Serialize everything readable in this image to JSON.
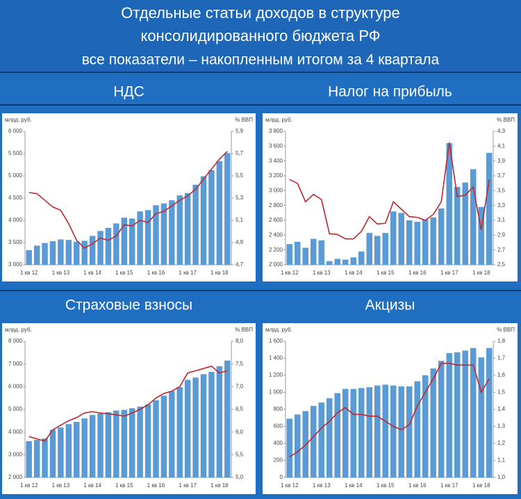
{
  "header": {
    "title_lines": [
      "Отдельные статьи доходов в структуре",
      "консолидированного бюджета РФ",
      "все показатели – накопленным итогом за 4 квартала"
    ]
  },
  "chart_data": [
    {
      "type": "combo",
      "title": "НДС",
      "ylabel": "млрд. руб.",
      "y2label": "% ВВП",
      "categories": [
        "1 кв 12",
        null,
        null,
        null,
        "1 кв 13",
        null,
        null,
        null,
        "1 кв 14",
        null,
        null,
        null,
        "1 кв 15",
        null,
        null,
        null,
        "1 кв 16",
        null,
        null,
        null,
        "1 кв 17",
        null,
        null,
        null,
        "1 кв 18",
        null
      ],
      "ylim": [
        3000,
        6000
      ],
      "yticks": [
        {
          "value": 3000,
          "label": "3 000"
        },
        {
          "value": 3500,
          "label": "3 500"
        },
        {
          "value": 4000,
          "label": "4 000"
        },
        {
          "value": 4500,
          "label": "4 500"
        },
        {
          "value": 5000,
          "label": "5 000"
        },
        {
          "value": 5500,
          "label": "5 500"
        },
        {
          "value": 6000,
          "label": "6 000"
        }
      ],
      "y2lim": [
        4.7,
        5.9
      ],
      "y2ticks": [
        {
          "value": 4.7,
          "label": "4,7"
        },
        {
          "value": 4.9,
          "label": "4,9"
        },
        {
          "value": 5.1,
          "label": "5,1"
        },
        {
          "value": 5.3,
          "label": "5,3"
        },
        {
          "value": 5.5,
          "label": "5,5"
        },
        {
          "value": 5.7,
          "label": "5,7"
        },
        {
          "value": 5.9,
          "label": "5,9"
        }
      ],
      "series": [
        {
          "type": "bar",
          "color": "#5b9bd5",
          "values": [
            3330,
            3430,
            3490,
            3530,
            3570,
            3560,
            3520,
            3540,
            3650,
            3760,
            3830,
            3930,
            4060,
            4040,
            4200,
            4230,
            4340,
            4380,
            4450,
            4560,
            4610,
            4800,
            4990,
            5130,
            5330,
            5510
          ]
        },
        {
          "type": "line",
          "axis": "y2",
          "color": "#c0262d",
          "values": [
            5.35,
            5.34,
            5.28,
            5.22,
            5.19,
            5.07,
            4.92,
            4.85,
            4.89,
            4.94,
            4.92,
            4.96,
            5.06,
            5.05,
            5.1,
            5.08,
            5.16,
            5.18,
            5.23,
            5.28,
            5.32,
            5.38,
            5.47,
            5.56,
            5.65,
            5.72
          ]
        }
      ]
    },
    {
      "type": "combo",
      "title": "Налог на прибыль",
      "ylabel": "млрд. руб.",
      "y2label": "% ВВП",
      "categories": [
        "1 кв 12",
        null,
        null,
        null,
        "1 кв 13",
        null,
        null,
        null,
        "1 кв 14",
        null,
        null,
        null,
        "1 кв 15",
        null,
        null,
        null,
        "1 кв 16",
        null,
        null,
        null,
        "1 кв 17",
        null,
        null,
        null,
        "1 кв 18",
        null
      ],
      "ylim": [
        2000,
        3800
      ],
      "yticks": [
        {
          "value": 2000,
          "label": "2 000"
        },
        {
          "value": 2200,
          "label": "2 200"
        },
        {
          "value": 2400,
          "label": "2 400"
        },
        {
          "value": 2600,
          "label": "2 600"
        },
        {
          "value": 2800,
          "label": "2 800"
        },
        {
          "value": 3000,
          "label": "3 000"
        },
        {
          "value": 3200,
          "label": "3 200"
        },
        {
          "value": 3400,
          "label": "3 400"
        },
        {
          "value": 3600,
          "label": "3 600"
        },
        {
          "value": 3800,
          "label": "3 800"
        }
      ],
      "y2lim": [
        2.5,
        4.3
      ],
      "y2ticks": [
        {
          "value": 2.5,
          "label": "2,5"
        },
        {
          "value": 2.7,
          "label": "2,7"
        },
        {
          "value": 2.9,
          "label": "2,9"
        },
        {
          "value": 3.1,
          "label": "3,1"
        },
        {
          "value": 3.3,
          "label": "3,3"
        },
        {
          "value": 3.5,
          "label": "3,5"
        },
        {
          "value": 3.7,
          "label": "3,7"
        },
        {
          "value": 3.9,
          "label": "3,9"
        },
        {
          "value": 4.1,
          "label": "4,1"
        },
        {
          "value": 4.3,
          "label": "4,3"
        }
      ],
      "series": [
        {
          "type": "bar",
          "color": "#5b9bd5",
          "values": [
            2280,
            2310,
            2230,
            2350,
            2330,
            2050,
            2080,
            2070,
            2100,
            2180,
            2430,
            2390,
            2430,
            2720,
            2700,
            2600,
            2580,
            2610,
            2640,
            2760,
            3640,
            3050,
            3110,
            3290,
            2780,
            3510
          ]
        },
        {
          "type": "line",
          "axis": "y2",
          "color": "#c0262d",
          "values": [
            3.65,
            3.6,
            3.35,
            3.45,
            3.38,
            2.92,
            2.91,
            2.85,
            2.85,
            2.95,
            3.15,
            3.05,
            3.06,
            3.35,
            3.25,
            3.15,
            3.14,
            3.1,
            3.18,
            3.35,
            4.15,
            3.42,
            3.44,
            3.55,
            2.97,
            3.65
          ]
        }
      ]
    },
    {
      "type": "combo",
      "title": "Страховые взносы",
      "ylabel": "млрд. руб.",
      "y2label": "% ВВП",
      "categories": [
        "1 кв 12",
        null,
        null,
        null,
        "1 кв 13",
        null,
        null,
        null,
        "1 кв 14",
        null,
        null,
        null,
        "1 кв 15",
        null,
        null,
        null,
        "1 кв 16",
        null,
        null,
        null,
        "1 кв 17",
        null,
        null,
        null,
        "1 кв 18",
        null
      ],
      "ylim": [
        2000,
        8000
      ],
      "yticks": [
        {
          "value": 2000,
          "label": "2 000"
        },
        {
          "value": 3000,
          "label": "3 000"
        },
        {
          "value": 4000,
          "label": "4 000"
        },
        {
          "value": 5000,
          "label": "5 000"
        },
        {
          "value": 6000,
          "label": "6 000"
        },
        {
          "value": 7000,
          "label": "7 000"
        },
        {
          "value": 8000,
          "label": "8 000"
        }
      ],
      "y2lim": [
        5.0,
        8.0
      ],
      "y2ticks": [
        {
          "value": 5.0,
          "label": "5,0"
        },
        {
          "value": 5.5,
          "label": "5,5"
        },
        {
          "value": 6.0,
          "label": "6,0"
        },
        {
          "value": 6.5,
          "label": "6,5"
        },
        {
          "value": 7.0,
          "label": "7,0"
        },
        {
          "value": 7.5,
          "label": "7,5"
        },
        {
          "value": 8.0,
          "label": "8,0"
        }
      ],
      "series": [
        {
          "type": "bar",
          "color": "#5b9bd5",
          "values": [
            3600,
            3650,
            3720,
            4100,
            4200,
            4350,
            4450,
            4600,
            4750,
            4820,
            4880,
            4950,
            4980,
            5050,
            5120,
            5220,
            5400,
            5600,
            5800,
            5980,
            6300,
            6400,
            6550,
            6650,
            6900,
            7150
          ]
        },
        {
          "type": "line",
          "axis": "y2",
          "color": "#c0262d",
          "values": [
            5.9,
            5.85,
            5.8,
            6.05,
            6.15,
            6.25,
            6.32,
            6.42,
            6.45,
            6.42,
            6.4,
            6.38,
            6.35,
            6.42,
            6.5,
            6.6,
            6.75,
            6.85,
            6.9,
            7.0,
            7.3,
            7.35,
            7.4,
            7.45,
            7.3,
            7.35
          ]
        }
      ]
    },
    {
      "type": "combo",
      "title": "Акцизы",
      "ylabel": "млрд. руб.",
      "y2label": "% ВВП",
      "categories": [
        "1 кв 12",
        null,
        null,
        null,
        "1 кв 13",
        null,
        null,
        null,
        "1 кв 14",
        null,
        null,
        null,
        "1 кв 15",
        null,
        null,
        null,
        "1 кв 16",
        null,
        null,
        null,
        "1 кв 17",
        null,
        null,
        null,
        "1 кв 18",
        null
      ],
      "ylim": [
        0,
        1600
      ],
      "yticks": [
        0,
        200,
        400,
        600,
        800,
        {
          "value": 1000,
          "label": "1 000"
        },
        {
          "value": 1200,
          "label": "1 200"
        },
        {
          "value": 1400,
          "label": "1 400"
        },
        {
          "value": 1600,
          "label": "1 600"
        }
      ],
      "y2lim": [
        1.0,
        1.8
      ],
      "y2ticks": [
        {
          "value": 1.0,
          "label": "1,0"
        },
        {
          "value": 1.1,
          "label": "1,1"
        },
        {
          "value": 1.2,
          "label": "1,2"
        },
        {
          "value": 1.3,
          "label": "1,3"
        },
        {
          "value": 1.4,
          "label": "1,4"
        },
        {
          "value": 1.5,
          "label": "1,5"
        },
        {
          "value": 1.6,
          "label": "1,6"
        },
        {
          "value": 1.7,
          "label": "1,7"
        },
        {
          "value": 1.8,
          "label": "1,8"
        }
      ],
      "series": [
        {
          "type": "bar",
          "color": "#5b9bd5",
          "values": [
            690,
            740,
            780,
            840,
            880,
            930,
            990,
            1040,
            1040,
            1050,
            1060,
            1080,
            1090,
            1080,
            1070,
            1070,
            1130,
            1200,
            1280,
            1370,
            1460,
            1470,
            1490,
            1520,
            1410,
            1520
          ]
        },
        {
          "type": "line",
          "axis": "y2",
          "color": "#c0262d",
          "values": [
            1.12,
            1.15,
            1.19,
            1.24,
            1.29,
            1.33,
            1.38,
            1.41,
            1.37,
            1.37,
            1.36,
            1.36,
            1.33,
            1.3,
            1.28,
            1.31,
            1.42,
            1.5,
            1.58,
            1.67,
            1.67,
            1.66,
            1.66,
            1.66,
            1.5,
            1.58
          ]
        }
      ]
    }
  ]
}
